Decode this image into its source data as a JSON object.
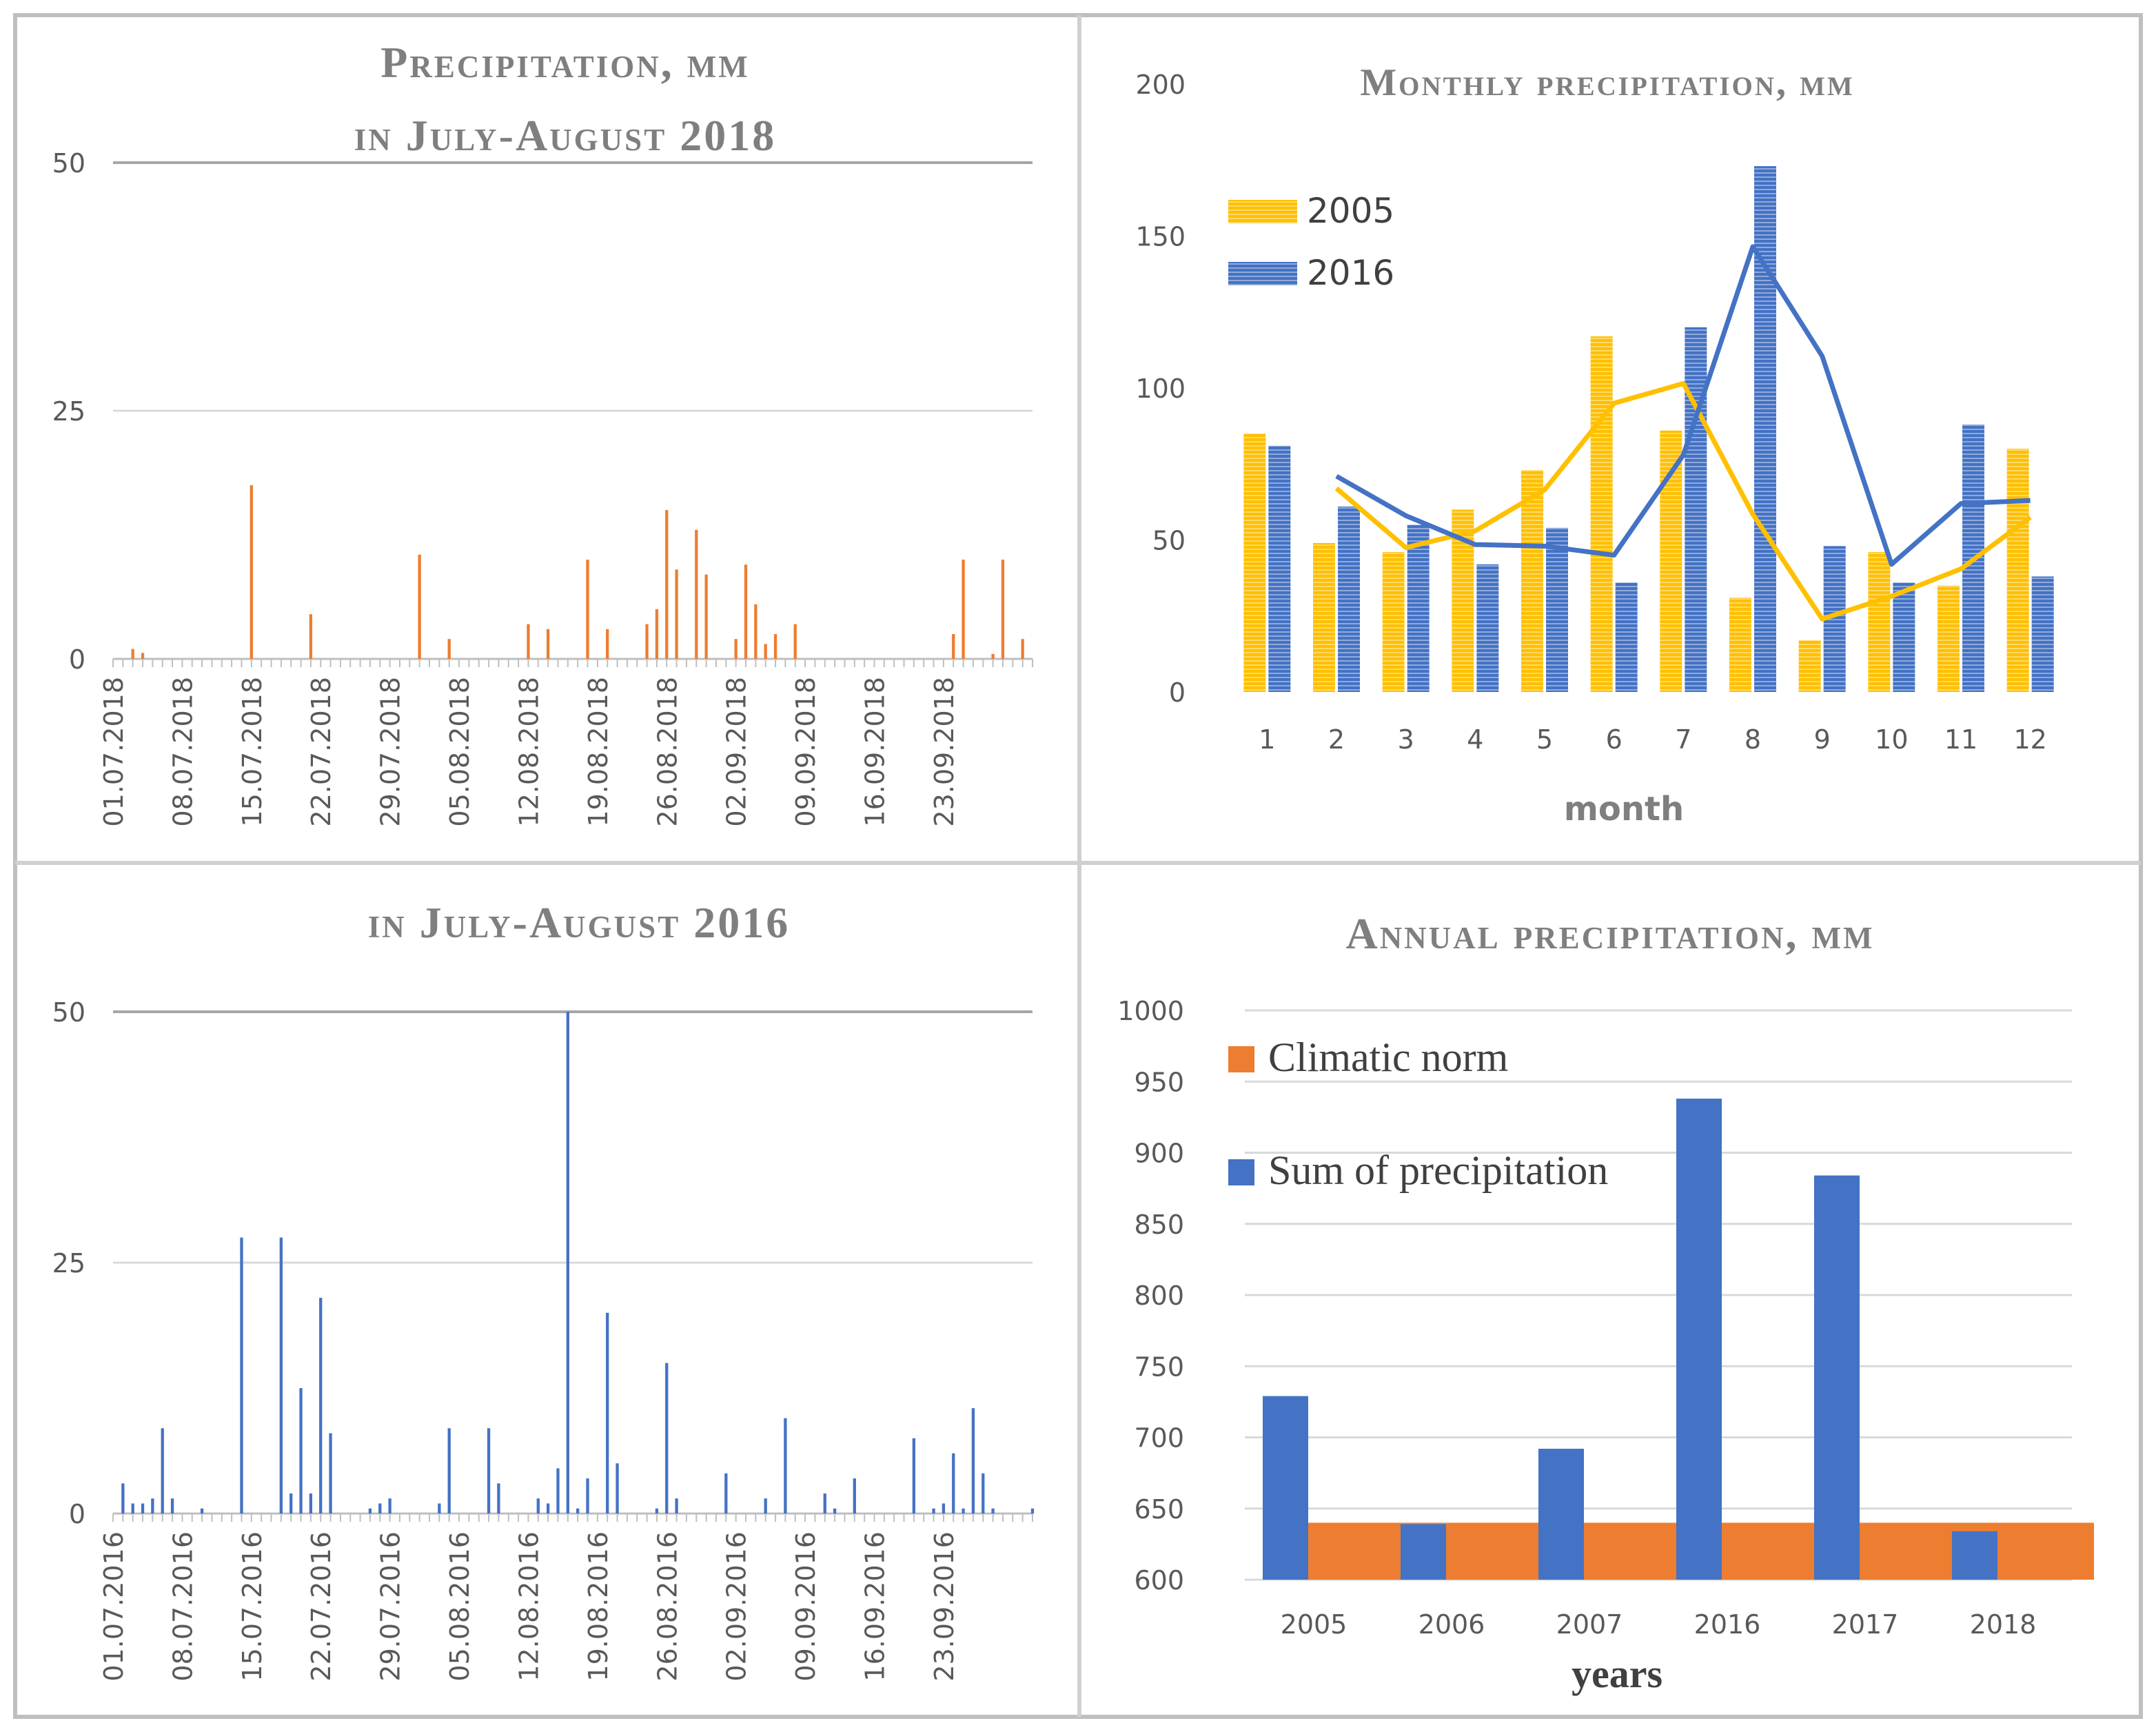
{
  "colors": {
    "orange": "#ED7D31",
    "blue": "#4472C4",
    "gold": "#FFC000",
    "grid": "#D9D9D9",
    "axis": "#BFBFBF",
    "border": "#BFBFBF",
    "divider": "#D0D0D0"
  },
  "chart_data": [
    {
      "type": "bar",
      "title": "Precipitation, mm",
      "title_line2": "in July-August 2018",
      "color": "#ED7D31",
      "ylim": [
        0,
        50
      ],
      "yticks": [
        0,
        25,
        50
      ],
      "start_date": "01.07.2018",
      "n_days": 94,
      "x_tick_labels": [
        "01.07.2018",
        "08.07.2018",
        "15.07.2018",
        "22.07.2018",
        "29.07.2018",
        "05.08.2018",
        "12.08.2018",
        "19.08.2018",
        "26.08.2018",
        "02.09.2018",
        "09.09.2018",
        "16.09.2018",
        "23.09.2018"
      ],
      "daily": [
        {
          "day": 3,
          "value": 1.0
        },
        {
          "day": 4,
          "value": 0.6
        },
        {
          "day": 15,
          "value": 17.5
        },
        {
          "day": 21,
          "value": 4.5
        },
        {
          "day": 32,
          "value": 10.5
        },
        {
          "day": 35,
          "value": 2.0
        },
        {
          "day": 43,
          "value": 3.5
        },
        {
          "day": 45,
          "value": 3.0
        },
        {
          "day": 49,
          "value": 10.0
        },
        {
          "day": 51,
          "value": 3.0
        },
        {
          "day": 55,
          "value": 3.5
        },
        {
          "day": 56,
          "value": 5.0
        },
        {
          "day": 57,
          "value": 15.0
        },
        {
          "day": 58,
          "value": 9.0
        },
        {
          "day": 60,
          "value": 13.0
        },
        {
          "day": 61,
          "value": 8.5
        },
        {
          "day": 64,
          "value": 2.0
        },
        {
          "day": 65,
          "value": 9.5
        },
        {
          "day": 66,
          "value": 5.5
        },
        {
          "day": 67,
          "value": 1.5
        },
        {
          "day": 68,
          "value": 2.5
        },
        {
          "day": 70,
          "value": 3.5
        },
        {
          "day": 86,
          "value": 2.5
        },
        {
          "day": 87,
          "value": 10.0
        },
        {
          "day": 90,
          "value": 0.5
        },
        {
          "day": 91,
          "value": 10.0
        },
        {
          "day": 93,
          "value": 2.0
        }
      ]
    },
    {
      "type": "bar",
      "title": "in July-August 2016",
      "color": "#4472C4",
      "ylim": [
        0,
        50
      ],
      "yticks": [
        0,
        25,
        50
      ],
      "start_date": "01.07.2016",
      "n_days": 94,
      "x_tick_labels": [
        "01.07.2016",
        "08.07.2016",
        "15.07.2016",
        "22.07.2016",
        "29.07.2016",
        "05.08.2016",
        "12.08.2016",
        "19.08.2016",
        "26.08.2016",
        "02.09.2016",
        "09.09.2016",
        "16.09.2016",
        "23.09.2016"
      ],
      "daily": [
        {
          "day": 2,
          "value": 3.0
        },
        {
          "day": 3,
          "value": 1.0
        },
        {
          "day": 4,
          "value": 1.0
        },
        {
          "day": 5,
          "value": 1.5
        },
        {
          "day": 6,
          "value": 8.5
        },
        {
          "day": 7,
          "value": 1.5
        },
        {
          "day": 10,
          "value": 0.5
        },
        {
          "day": 14,
          "value": 27.5
        },
        {
          "day": 18,
          "value": 27.5
        },
        {
          "day": 19,
          "value": 2.0
        },
        {
          "day": 20,
          "value": 12.5
        },
        {
          "day": 21,
          "value": 2.0
        },
        {
          "day": 22,
          "value": 21.5
        },
        {
          "day": 23,
          "value": 8.0
        },
        {
          "day": 27,
          "value": 0.5
        },
        {
          "day": 28,
          "value": 1.0
        },
        {
          "day": 29,
          "value": 1.5
        },
        {
          "day": 34,
          "value": 1.0
        },
        {
          "day": 35,
          "value": 8.5
        },
        {
          "day": 39,
          "value": 8.5
        },
        {
          "day": 40,
          "value": 3.0
        },
        {
          "day": 44,
          "value": 1.5
        },
        {
          "day": 45,
          "value": 1.0
        },
        {
          "day": 46,
          "value": 4.5
        },
        {
          "day": 47,
          "value": 50.0
        },
        {
          "day": 48,
          "value": 0.5
        },
        {
          "day": 49,
          "value": 3.5
        },
        {
          "day": 51,
          "value": 20.0
        },
        {
          "day": 52,
          "value": 5.0
        },
        {
          "day": 56,
          "value": 0.5
        },
        {
          "day": 57,
          "value": 15.0
        },
        {
          "day": 58,
          "value": 1.5
        },
        {
          "day": 63,
          "value": 4.0
        },
        {
          "day": 67,
          "value": 1.5
        },
        {
          "day": 69,
          "value": 9.5
        },
        {
          "day": 73,
          "value": 2.0
        },
        {
          "day": 74,
          "value": 0.5
        },
        {
          "day": 76,
          "value": 3.5
        },
        {
          "day": 82,
          "value": 7.5
        },
        {
          "day": 84,
          "value": 0.5
        },
        {
          "day": 85,
          "value": 1.0
        },
        {
          "day": 86,
          "value": 6.0
        },
        {
          "day": 87,
          "value": 0.5
        },
        {
          "day": 88,
          "value": 10.5
        },
        {
          "day": 89,
          "value": 4.0
        },
        {
          "day": 90,
          "value": 0.5
        },
        {
          "day": 94,
          "value": 0.5
        }
      ]
    },
    {
      "type": "bar+line",
      "title": "Monthly precipitation, mm",
      "xlabel": "month",
      "ylabel": "",
      "ylim": [
        0,
        200
      ],
      "yticks": [
        0,
        50,
        100,
        150,
        200
      ],
      "categories": [
        "1",
        "2",
        "3",
        "4",
        "5",
        "6",
        "7",
        "8",
        "9",
        "10",
        "11",
        "12"
      ],
      "legend": "top-left",
      "series": [
        {
          "name": "2005",
          "color": "#FFC000",
          "values": [
            85,
            49,
            46,
            60,
            73,
            117,
            86,
            31,
            17,
            46,
            35,
            80
          ]
        },
        {
          "name": "2016",
          "color": "#4472C4",
          "values": [
            81,
            61,
            55,
            42,
            54,
            36,
            120,
            173,
            48,
            36,
            88,
            38
          ]
        }
      ],
      "trend_lines": [
        {
          "name": "2005 moving average",
          "color": "#FFC000",
          "start_month": 2,
          "values": [
            67,
            47.5,
            53,
            66.5,
            95,
            101.5,
            58.5,
            24,
            31.5,
            40.5,
            57.5
          ]
        },
        {
          "name": "2016 moving average",
          "color": "#4472C4",
          "start_month": 2,
          "values": [
            71,
            58,
            48.5,
            48,
            45,
            78,
            146.5,
            110.5,
            42,
            62,
            63
          ]
        }
      ]
    },
    {
      "type": "bar",
      "title": "Annual precipitation, mm",
      "xlabel": "years",
      "ylabel": "",
      "ylim": [
        600,
        1000
      ],
      "yticks": [
        600,
        650,
        700,
        750,
        800,
        850,
        900,
        950,
        1000
      ],
      "categories": [
        "2005",
        "2006",
        "2007",
        "2016",
        "2017",
        "2018"
      ],
      "legend": "top-left",
      "series": [
        {
          "name": "Climatic norm",
          "color": "#ED7D31",
          "values": [
            640,
            640,
            640,
            640,
            640,
            640
          ]
        },
        {
          "name": "Sum of precipitation",
          "color": "#4472C4",
          "values": [
            729,
            639,
            692,
            938,
            884,
            634
          ]
        }
      ]
    }
  ]
}
